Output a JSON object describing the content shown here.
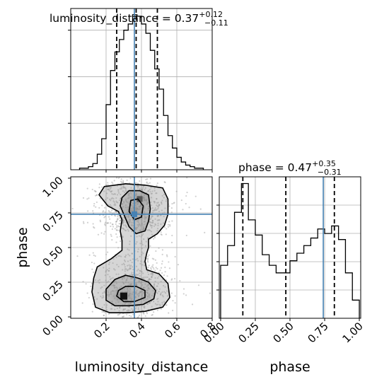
{
  "chart_data": {
    "type": "corner",
    "parameters": [
      "luminosity_distance",
      "phase"
    ],
    "truth": {
      "luminosity_distance": 0.36,
      "phase": 0.74
    },
    "panels": {
      "luminosity_distance_hist": {
        "type": "histogram",
        "title_text": "luminosity_distance = 0.37",
        "title_sup": "+0.12",
        "title_sub": "−0.11",
        "xlim": [
          0.0,
          0.8
        ],
        "quantile_lines": [
          0.26,
          0.37,
          0.49
        ],
        "bin_edges": [
          0.05,
          0.075,
          0.1,
          0.125,
          0.15,
          0.175,
          0.2,
          0.225,
          0.25,
          0.275,
          0.3,
          0.325,
          0.35,
          0.375,
          0.4,
          0.425,
          0.45,
          0.475,
          0.5,
          0.525,
          0.55,
          0.575,
          0.6,
          0.625,
          0.65,
          0.675,
          0.7,
          0.725,
          0.75
        ],
        "counts": [
          1,
          1,
          2,
          4,
          10,
          20,
          42,
          64,
          76,
          84,
          90,
          94,
          100,
          99,
          94,
          88,
          77,
          65,
          52,
          35,
          22,
          14,
          8,
          5,
          3,
          2,
          1,
          1
        ],
        "grid": true
      },
      "phase_hist": {
        "type": "histogram",
        "title_text": "phase = 0.47",
        "title_sup": "+0.35",
        "title_sub": "−0.31",
        "xlim": [
          -0.01,
          1.01
        ],
        "xticks": [
          "0.00",
          "0.25",
          "0.50",
          "0.75",
          "1.00"
        ],
        "xlabel": "phase",
        "quantile_lines": [
          0.16,
          0.47,
          0.82
        ],
        "bin_edges": [
          0.0,
          0.05,
          0.1,
          0.15,
          0.2,
          0.25,
          0.3,
          0.35,
          0.4,
          0.45,
          0.5,
          0.55,
          0.6,
          0.65,
          0.7,
          0.75,
          0.8,
          0.85,
          0.9,
          0.95,
          1.0
        ],
        "counts": [
          35,
          48,
          70,
          89,
          65,
          55,
          42,
          35,
          30,
          30,
          38,
          43,
          48,
          53,
          59,
          56,
          61,
          52,
          30,
          12
        ],
        "grid": true
      },
      "scatter_2d": {
        "type": "2d-density",
        "xlim": [
          0.0,
          0.8
        ],
        "ylim": [
          -0.01,
          1.01
        ],
        "xticks": [
          "0.2",
          "0.4",
          "0.6",
          "0.8"
        ],
        "yticks": [
          "0.00",
          "0.25",
          "0.50",
          "0.75",
          "1.00"
        ],
        "xlabel": "luminosity_distance",
        "ylabel": "phase",
        "contours": [
          [
            [
              0.12,
              0.18
            ],
            [
              0.14,
              0.07
            ],
            [
              0.22,
              0.03
            ],
            [
              0.32,
              0.03
            ],
            [
              0.42,
              0.04
            ],
            [
              0.52,
              0.07
            ],
            [
              0.56,
              0.14
            ],
            [
              0.55,
              0.24
            ],
            [
              0.5,
              0.31
            ],
            [
              0.43,
              0.34
            ],
            [
              0.42,
              0.4
            ],
            [
              0.43,
              0.46
            ],
            [
              0.44,
              0.5
            ],
            [
              0.44,
              0.56
            ],
            [
              0.49,
              0.6
            ],
            [
              0.53,
              0.66
            ],
            [
              0.55,
              0.74
            ],
            [
              0.55,
              0.85
            ],
            [
              0.52,
              0.93
            ],
            [
              0.42,
              0.95
            ],
            [
              0.31,
              0.96
            ],
            [
              0.19,
              0.94
            ],
            [
              0.16,
              0.88
            ],
            [
              0.21,
              0.8
            ],
            [
              0.27,
              0.76
            ],
            [
              0.29,
              0.7
            ],
            [
              0.28,
              0.62
            ],
            [
              0.29,
              0.55
            ],
            [
              0.29,
              0.48
            ],
            [
              0.23,
              0.42
            ],
            [
              0.15,
              0.36
            ],
            [
              0.13,
              0.28
            ],
            [
              0.12,
              0.18
            ]
          ],
          [
            [
              0.2,
              0.12
            ],
            [
              0.25,
              0.08
            ],
            [
              0.33,
              0.08
            ],
            [
              0.41,
              0.09
            ],
            [
              0.47,
              0.13
            ],
            [
              0.48,
              0.19
            ],
            [
              0.44,
              0.25
            ],
            [
              0.38,
              0.28
            ],
            [
              0.31,
              0.3
            ],
            [
              0.25,
              0.27
            ],
            [
              0.2,
              0.2
            ],
            [
              0.2,
              0.12
            ]
          ],
          [
            [
              0.3,
              0.74
            ],
            [
              0.33,
              0.65
            ],
            [
              0.37,
              0.6
            ],
            [
              0.42,
              0.62
            ],
            [
              0.44,
              0.69
            ],
            [
              0.45,
              0.78
            ],
            [
              0.44,
              0.88
            ],
            [
              0.39,
              0.91
            ],
            [
              0.33,
              0.91
            ],
            [
              0.29,
              0.86
            ],
            [
              0.28,
              0.8
            ],
            [
              0.3,
              0.74
            ]
          ],
          [
            [
              0.26,
              0.15
            ],
            [
              0.3,
              0.11
            ],
            [
              0.36,
              0.11
            ],
            [
              0.42,
              0.14
            ],
            [
              0.42,
              0.19
            ],
            [
              0.37,
              0.22
            ],
            [
              0.31,
              0.22
            ],
            [
              0.27,
              0.19
            ],
            [
              0.26,
              0.15
            ]
          ],
          [
            [
              0.33,
              0.76
            ],
            [
              0.36,
              0.7
            ],
            [
              0.4,
              0.72
            ],
            [
              0.41,
              0.8
            ],
            [
              0.38,
              0.85
            ],
            [
              0.34,
              0.84
            ],
            [
              0.33,
              0.76
            ]
          ]
        ],
        "density_peaks": [
          {
            "x": 0.3,
            "y": 0.15,
            "level": 0.9
          },
          {
            "x": 0.36,
            "y": 0.77,
            "level": 0.5
          },
          {
            "x": 0.39,
            "y": 0.85,
            "level": 0.6
          }
        ]
      }
    }
  }
}
